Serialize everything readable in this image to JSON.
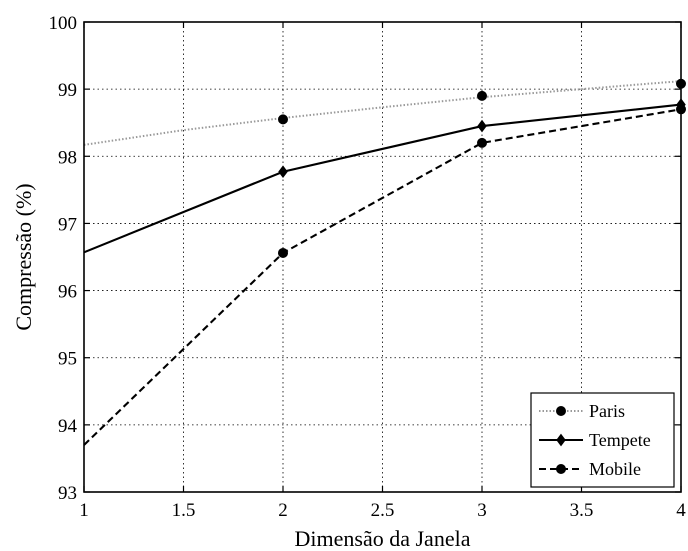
{
  "chart_data": {
    "type": "line",
    "title": "",
    "xlabel": "Dimensão da Janela",
    "ylabel": "Compressão (%)",
    "xlim": [
      1,
      4
    ],
    "ylim": [
      93,
      100
    ],
    "grid": true,
    "legend_position": "bottom-right",
    "x_ticks": [
      "1",
      "1.5",
      "2",
      "2.5",
      "3",
      "3.5",
      "4"
    ],
    "y_ticks": [
      "93",
      "94",
      "95",
      "96",
      "97",
      "98",
      "99",
      "100"
    ],
    "series": [
      {
        "name": "Paris",
        "color": "#999999",
        "line_style": "dotted",
        "marker": "circle",
        "marker_x": [
          2,
          3,
          4
        ],
        "marker_y": [
          98.55,
          98.9,
          99.08
        ],
        "curve_x": [
          1,
          1.5,
          2,
          2.5,
          3,
          3.5,
          4
        ],
        "curve_y": [
          98.17,
          98.39,
          98.57,
          98.73,
          98.88,
          99.0,
          99.12
        ]
      },
      {
        "name": "Tempete",
        "color": "#000000",
        "line_style": "solid",
        "marker": "diamond",
        "marker_x": [
          2,
          3,
          4
        ],
        "marker_y": [
          97.77,
          98.45,
          98.77
        ],
        "curve_x": [
          1,
          2,
          3,
          4
        ],
        "curve_y": [
          96.57,
          97.77,
          98.45,
          98.77
        ]
      },
      {
        "name": "Mobile",
        "color": "#000000",
        "line_style": "dashed",
        "marker": "circle",
        "marker_x": [
          2,
          3,
          4
        ],
        "marker_y": [
          96.56,
          98.2,
          98.7
        ],
        "curve_x": [
          1,
          2,
          3,
          4
        ],
        "curve_y": [
          93.7,
          96.56,
          98.2,
          98.7
        ]
      }
    ]
  }
}
